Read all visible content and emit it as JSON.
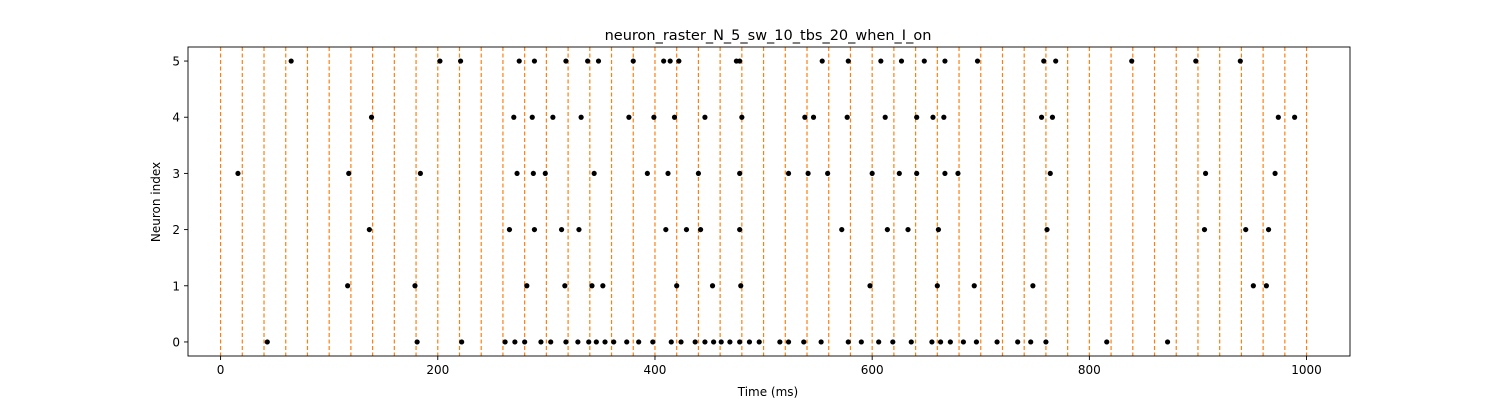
{
  "chart_data": {
    "type": "scatter",
    "title": "neuron_raster_N_5_sw_10_tbs_20_when_I_on",
    "xlabel": "Time (ms)",
    "ylabel": "Neuron index",
    "xlim": [
      -30,
      1040
    ],
    "ylim": [
      -0.25,
      5.25
    ],
    "x_ticks": [
      0,
      200,
      400,
      600,
      800,
      1000
    ],
    "y_ticks": [
      0,
      1,
      2,
      3,
      4,
      5
    ],
    "grid": false,
    "marker_color": "#000000",
    "vline_color": "#ff7f0e",
    "vline_style": "dashed",
    "vlines": [
      0,
      20,
      40,
      60,
      80,
      100,
      120,
      140,
      160,
      180,
      200,
      220,
      240,
      260,
      280,
      300,
      320,
      340,
      360,
      380,
      400,
      420,
      440,
      460,
      480,
      500,
      520,
      540,
      560,
      580,
      600,
      620,
      640,
      660,
      680,
      700,
      720,
      740,
      760,
      780,
      800,
      820,
      840,
      860,
      880,
      900,
      920,
      940,
      960,
      980,
      1000
    ],
    "series": [
      {
        "neuron": 0,
        "x": [
          43,
          181,
          222,
          262,
          271,
          280,
          295,
          304,
          318,
          329,
          339,
          346,
          354,
          362,
          374,
          385,
          398,
          415,
          424,
          437,
          446,
          454,
          461,
          469,
          478,
          487,
          496,
          515,
          523,
          537,
          553,
          578,
          590,
          606,
          619,
          636,
          655,
          663,
          672,
          684,
          696,
          715,
          734,
          746,
          760,
          816,
          872
        ]
      },
      {
        "neuron": 1,
        "x": [
          117,
          179,
          282,
          317,
          342,
          352,
          420,
          453,
          479,
          598,
          660,
          694,
          748,
          951,
          963
        ]
      },
      {
        "neuron": 2,
        "x": [
          137,
          266,
          289,
          314,
          330,
          410,
          429,
          442,
          478,
          572,
          614,
          633,
          661,
          761,
          906,
          944,
          965
        ]
      },
      {
        "neuron": 3,
        "x": [
          16,
          118,
          184,
          273,
          288,
          299,
          344,
          393,
          412,
          440,
          478,
          523,
          541,
          559,
          600,
          625,
          641,
          667,
          679,
          764,
          907,
          971
        ]
      },
      {
        "neuron": 4,
        "x": [
          139,
          270,
          287,
          306,
          332,
          376,
          399,
          418,
          446,
          480,
          538,
          546,
          577,
          612,
          641,
          656,
          666,
          756,
          766,
          974,
          989
        ]
      },
      {
        "neuron": 5,
        "x": [
          65,
          202,
          221,
          275,
          289,
          318,
          338,
          348,
          380,
          408,
          414,
          422,
          475,
          478,
          554,
          578,
          608,
          627,
          648,
          667,
          697,
          758,
          769,
          839,
          898,
          939
        ]
      }
    ]
  }
}
